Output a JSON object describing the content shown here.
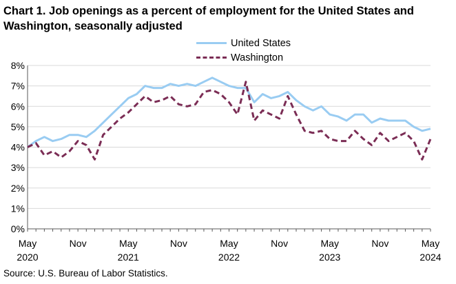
{
  "chart_data": {
    "type": "line",
    "title": "Chart 1. Job openings as a percent of employment for the United States and Washington, seasonally adjusted",
    "xlabel": "",
    "ylabel": "",
    "ylim": [
      0,
      8
    ],
    "y_ticks": [
      "0%",
      "1%",
      "2%",
      "3%",
      "4%",
      "5%",
      "6%",
      "7%",
      "8%"
    ],
    "x_ticks": [
      {
        "index": 0,
        "label": "May",
        "sub": "2020"
      },
      {
        "index": 6,
        "label": "Nov",
        "sub": ""
      },
      {
        "index": 12,
        "label": "May",
        "sub": "2021"
      },
      {
        "index": 18,
        "label": "Nov",
        "sub": ""
      },
      {
        "index": 24,
        "label": "May",
        "sub": "2022"
      },
      {
        "index": 30,
        "label": "Nov",
        "sub": ""
      },
      {
        "index": 36,
        "label": "May",
        "sub": "2023"
      },
      {
        "index": 42,
        "label": "Nov",
        "sub": ""
      },
      {
        "index": 48,
        "label": "May",
        "sub": "2024"
      }
    ],
    "n_points": 49,
    "legend_position": "top-center",
    "grid": true,
    "series": [
      {
        "name": "United States",
        "color": "#99ccf2",
        "style": "solid",
        "values": [
          4.0,
          4.3,
          4.5,
          4.3,
          4.4,
          4.6,
          4.6,
          4.5,
          4.8,
          5.2,
          5.6,
          6.0,
          6.4,
          6.6,
          7.0,
          6.9,
          6.9,
          7.1,
          7.0,
          7.1,
          7.0,
          7.2,
          7.4,
          7.2,
          7.0,
          6.9,
          6.9,
          6.2,
          6.6,
          6.4,
          6.5,
          6.7,
          6.3,
          6.0,
          5.8,
          6.0,
          5.6,
          5.5,
          5.3,
          5.6,
          5.6,
          5.2,
          5.4,
          5.3,
          5.3,
          5.3,
          5.0,
          4.8,
          4.9
        ]
      },
      {
        "name": "Washington",
        "color": "#7b2d55",
        "style": "dashed",
        "values": [
          4.0,
          4.2,
          3.6,
          3.8,
          3.5,
          3.8,
          4.3,
          4.1,
          3.4,
          4.6,
          5.0,
          5.4,
          5.7,
          6.1,
          6.5,
          6.2,
          6.3,
          6.5,
          6.1,
          6.0,
          6.1,
          6.7,
          6.8,
          6.6,
          6.2,
          5.6,
          7.2,
          5.3,
          5.8,
          5.6,
          5.4,
          6.5,
          5.6,
          4.8,
          4.7,
          4.8,
          4.4,
          4.3,
          4.3,
          4.8,
          4.4,
          4.1,
          4.7,
          4.3,
          4.5,
          4.7,
          4.3,
          3.4,
          4.4
        ]
      }
    ]
  },
  "source": "Source: U.S. Bureau of Labor Statistics."
}
